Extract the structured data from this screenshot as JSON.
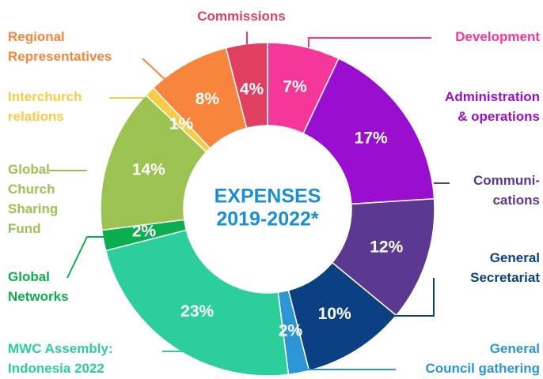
{
  "chart_data": {
    "type": "donut",
    "title": "EXPENSES",
    "subtitle": "2019-2022*",
    "series": [
      {
        "name": "Development",
        "color": "#f5379a",
        "values": [
          7
        ],
        "value_labels": [
          "7%"
        ]
      },
      {
        "name": "Administration\n& operations",
        "color": "#9a0fcf",
        "values": [
          17
        ],
        "value_labels": [
          "17%"
        ]
      },
      {
        "name": "Communi-\ncations",
        "color": "#5b3990",
        "values": [
          12
        ],
        "value_labels": [
          "12%"
        ]
      },
      {
        "name": "General\nSecretariat",
        "color": "#0b4183",
        "values": [
          10
        ],
        "value_labels": [
          "10%"
        ]
      },
      {
        "name": "General\nCouncil gathering",
        "color": "#2b95d6",
        "values": [
          2
        ],
        "value_labels": [
          "2%"
        ]
      },
      {
        "name": "MWC Assembly:\nIndonesia 2022",
        "color": "#2ccf9c",
        "values": [
          23
        ],
        "value_labels": [
          "23%"
        ]
      },
      {
        "name": "Global\nNetworks",
        "color": "#0aae4f",
        "values": [
          2
        ],
        "value_labels": [
          "2%"
        ]
      },
      {
        "name": "Global\nChurch\nSharing\nFund",
        "color": "#9cc351",
        "values": [
          14
        ],
        "value_labels": [
          "14%"
        ]
      },
      {
        "name": "Interchurch\nrelations",
        "color": "#f8cc45",
        "values": [
          1
        ],
        "value_labels": [
          "1%"
        ]
      },
      {
        "name": "Regional\nRepresentatives",
        "color": "#f7853c",
        "values": [
          8
        ],
        "value_labels": [
          "8%"
        ]
      },
      {
        "name": "Commissions",
        "color": "#e03f60",
        "values": [
          4
        ],
        "value_labels": [
          "4%"
        ]
      }
    ]
  }
}
